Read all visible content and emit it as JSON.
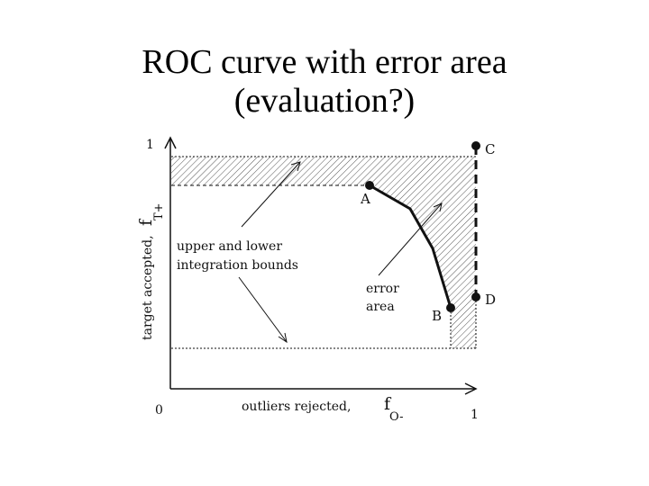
{
  "slide": {
    "title_line1": "ROC curve with error area",
    "title_line2": "(evaluation?)"
  },
  "figure": {
    "y_axis_label": "target accepted,",
    "y_axis_symbol": "f",
    "y_axis_subscript": "T+",
    "x_axis_label": "outliers rejected,",
    "x_axis_symbol": "f",
    "x_axis_subscript": "O-",
    "origin_tick": "0",
    "x_max_tick": "1",
    "y_max_tick": "1",
    "bounds_annotation_line1": "upper and lower",
    "bounds_annotation_line2": "integration bounds",
    "error_annotation_line1": "error",
    "error_annotation_line2": "area",
    "point_a": "A",
    "point_b": "B",
    "point_c": "C",
    "point_d": "D",
    "ink_color": "#111111"
  }
}
